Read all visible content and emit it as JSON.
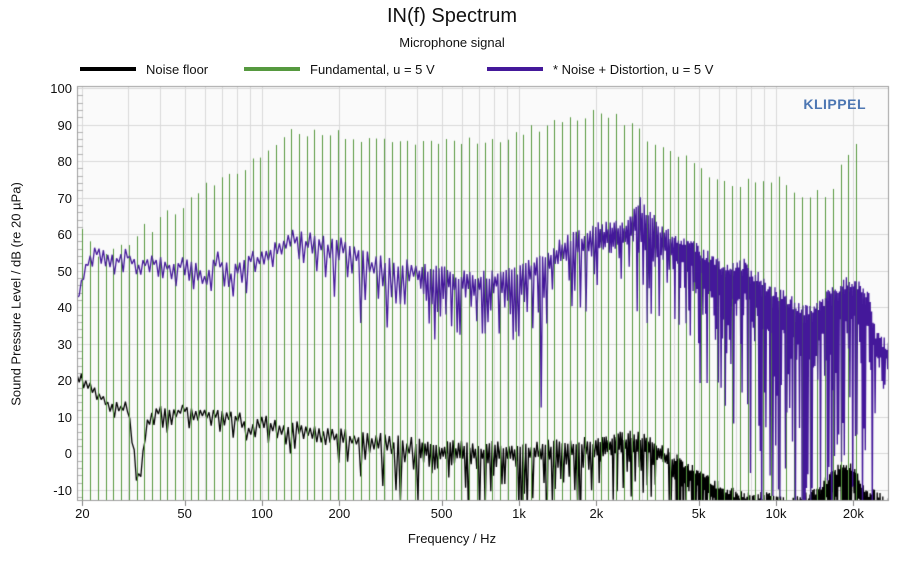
{
  "header": {
    "title": "IN(f) Spectrum",
    "subtitle": "Microphone signal"
  },
  "watermark": {
    "text": "KLIPPEL",
    "color": "#4d77b3"
  },
  "legend": [
    {
      "label": "Noise floor",
      "color": "#000000"
    },
    {
      "label": "Fundamental, u = 5 V",
      "color": "#56993f"
    },
    {
      "label": "* Noise + Distortion, u = 5 V",
      "color": "#44189a"
    }
  ],
  "chart_data": {
    "type": "line",
    "title": "IN(f) Spectrum",
    "subtitle": "Microphone signal",
    "xlabel": "Frequency / Hz",
    "ylabel": "Sound Pressure Level / dB (re 20 µPa)",
    "grid": true,
    "legend_position": "top",
    "plot_background": "#fafafa",
    "grid_color": "#d9d9d9",
    "border_color": "#9e9e9e",
    "x_axis": {
      "scale": "log",
      "min_hz": 19,
      "max_hz": 27500,
      "ticks": [
        {
          "value": 20,
          "label": "20"
        },
        {
          "value": 50,
          "label": "50"
        },
        {
          "value": 100,
          "label": "100"
        },
        {
          "value": 200,
          "label": "200"
        },
        {
          "value": 500,
          "label": "500"
        },
        {
          "value": 1000,
          "label": "1k"
        },
        {
          "value": 2000,
          "label": "2k"
        },
        {
          "value": 5000,
          "label": "5k"
        },
        {
          "value": 10000,
          "label": "10k"
        },
        {
          "value": 20000,
          "label": "20k"
        }
      ]
    },
    "y_axis": {
      "min_db": -13,
      "max_db": 100.5,
      "tick_start": -10,
      "tick_end": 100,
      "tick_step": 10,
      "minor_tick_step": 2
    },
    "series": [
      {
        "name": "Noise floor",
        "type": "noisy-line",
        "color": "#000000",
        "envelope_db": [
          [
            20,
            20.5
          ],
          [
            23,
            16
          ],
          [
            26,
            12.5
          ],
          [
            30,
            12
          ],
          [
            33,
            -8
          ],
          [
            36,
            9
          ],
          [
            40,
            11.5
          ],
          [
            45,
            10.5
          ],
          [
            50,
            12
          ],
          [
            55,
            10
          ],
          [
            60,
            11
          ],
          [
            70,
            10
          ],
          [
            80,
            9.5
          ],
          [
            90,
            6
          ],
          [
            100,
            8.5
          ],
          [
            120,
            7
          ],
          [
            140,
            6
          ],
          [
            170,
            5
          ],
          [
            200,
            4.5
          ],
          [
            250,
            3.5
          ],
          [
            300,
            2.5
          ],
          [
            400,
            1.5
          ],
          [
            500,
            1
          ],
          [
            650,
            0.5
          ],
          [
            800,
            0.5
          ],
          [
            1000,
            0.5
          ],
          [
            1300,
            1
          ],
          [
            1600,
            1.5
          ],
          [
            2000,
            2
          ],
          [
            2400,
            3
          ],
          [
            2800,
            3.5
          ],
          [
            3200,
            2
          ],
          [
            3600,
            0
          ],
          [
            4000,
            -2.5
          ],
          [
            4500,
            -5
          ],
          [
            5000,
            -7
          ],
          [
            5500,
            -9
          ],
          [
            6000,
            -11
          ],
          [
            7000,
            -13
          ],
          [
            8000,
            -14
          ],
          [
            10000,
            -14
          ],
          [
            12000,
            -15
          ],
          [
            14000,
            -13
          ],
          [
            16000,
            -9
          ],
          [
            18000,
            -6
          ],
          [
            20000,
            -6
          ],
          [
            22000,
            -12
          ],
          [
            27500,
            -16
          ]
        ],
        "upper_db": [
          [
            20,
            2
          ],
          [
            100,
            2.5
          ],
          [
            300,
            3
          ],
          [
            1000,
            3
          ],
          [
            3000,
            3
          ],
          [
            27500,
            4
          ]
        ],
        "lower_db": [
          [
            20,
            3
          ],
          [
            60,
            5
          ],
          [
            120,
            6
          ],
          [
            200,
            10
          ],
          [
            300,
            15
          ],
          [
            600,
            18
          ],
          [
            1500,
            17
          ],
          [
            3000,
            16
          ],
          [
            6000,
            20
          ],
          [
            27500,
            25
          ]
        ]
      },
      {
        "name": "Fundamental, u = 5 V",
        "type": "comb",
        "color": "#56993f",
        "f_start_hz": 20,
        "tones_per_octave": 10,
        "num_tones": 101,
        "level_envelope_db": [
          [
            20,
            61
          ],
          [
            22,
            56
          ],
          [
            24,
            53
          ],
          [
            26,
            57
          ],
          [
            28,
            57
          ],
          [
            30,
            56
          ],
          [
            32,
            59
          ],
          [
            35,
            62
          ],
          [
            38,
            61
          ],
          [
            40,
            64
          ],
          [
            43,
            66
          ],
          [
            46,
            65
          ],
          [
            50,
            69
          ],
          [
            55,
            71
          ],
          [
            60,
            73
          ],
          [
            66,
            74
          ],
          [
            72,
            75.5
          ],
          [
            78,
            76.5
          ],
          [
            85,
            78.5
          ],
          [
            92,
            80
          ],
          [
            100,
            82
          ],
          [
            108,
            84
          ],
          [
            116,
            86
          ],
          [
            125,
            87
          ],
          [
            134,
            88
          ],
          [
            144,
            88
          ],
          [
            155,
            87.5
          ],
          [
            166,
            88
          ],
          [
            178,
            87
          ],
          [
            191,
            87.5
          ],
          [
            205,
            87
          ],
          [
            220,
            86
          ],
          [
            236,
            86.5
          ],
          [
            253,
            85
          ],
          [
            271,
            86
          ],
          [
            291,
            85
          ],
          [
            312,
            85.5
          ],
          [
            335,
            84.5
          ],
          [
            359,
            85
          ],
          [
            385,
            85.5
          ],
          [
            413,
            85
          ],
          [
            443,
            85.5
          ],
          [
            475,
            85
          ],
          [
            509,
            85.5
          ],
          [
            546,
            85
          ],
          [
            586,
            86
          ],
          [
            628,
            85.5
          ],
          [
            674,
            85
          ],
          [
            722,
            85.5
          ],
          [
            775,
            85
          ],
          [
            831,
            85.5
          ],
          [
            891,
            86.5
          ],
          [
            955,
            87
          ],
          [
            1024,
            87.5
          ],
          [
            1098,
            88.5
          ],
          [
            1178,
            89
          ],
          [
            1263,
            90
          ],
          [
            1354,
            90.5
          ],
          [
            1452,
            91
          ],
          [
            1557,
            91.5
          ],
          [
            1670,
            92
          ],
          [
            1790,
            92.5
          ],
          [
            1920,
            93.5
          ],
          [
            2059,
            93
          ],
          [
            2208,
            92.5
          ],
          [
            2367,
            92
          ],
          [
            2539,
            91
          ],
          [
            2722,
            90
          ],
          [
            2919,
            88
          ],
          [
            3130,
            86
          ],
          [
            3357,
            84.5
          ],
          [
            3599,
            83
          ],
          [
            3859,
            82
          ],
          [
            4139,
            81
          ],
          [
            4438,
            80.5
          ],
          [
            4759,
            79
          ],
          [
            5103,
            78
          ],
          [
            5472,
            76.5
          ],
          [
            5868,
            75.5
          ],
          [
            6292,
            74.5
          ],
          [
            6747,
            74
          ],
          [
            7235,
            73.5
          ],
          [
            7758,
            74.5
          ],
          [
            8319,
            75
          ],
          [
            8921,
            75.5
          ],
          [
            9566,
            74.5
          ],
          [
            10258,
            75
          ],
          [
            11000,
            73
          ],
          [
            11795,
            71.5
          ],
          [
            12648,
            71
          ],
          [
            13563,
            70.5
          ],
          [
            14544,
            71
          ],
          [
            15596,
            70.5
          ],
          [
            16724,
            72
          ],
          [
            17933,
            79
          ],
          [
            19230,
            83
          ],
          [
            20480,
            84
          ]
        ]
      },
      {
        "name": "* Noise + Distortion, u = 5 V",
        "type": "noisy-line",
        "color": "#44189a",
        "envelope_db": [
          [
            19,
            41
          ],
          [
            21,
            53
          ],
          [
            23,
            55
          ],
          [
            25,
            53.5
          ],
          [
            27,
            53
          ],
          [
            30,
            54
          ],
          [
            33,
            51
          ],
          [
            36,
            52.5
          ],
          [
            40,
            52
          ],
          [
            45,
            50.5
          ],
          [
            50,
            52.5
          ],
          [
            55,
            50
          ],
          [
            60,
            46
          ],
          [
            64,
            51
          ],
          [
            68,
            53
          ],
          [
            72,
            50
          ],
          [
            76,
            48
          ],
          [
            80,
            51
          ],
          [
            85,
            52
          ],
          [
            90,
            53.5
          ],
          [
            95,
            52
          ],
          [
            100,
            53
          ],
          [
            110,
            55
          ],
          [
            120,
            56.5
          ],
          [
            130,
            59
          ],
          [
            140,
            58
          ],
          [
            150,
            57
          ],
          [
            160,
            58.5
          ],
          [
            170,
            57
          ],
          [
            180,
            56.5
          ],
          [
            190,
            55.5
          ],
          [
            200,
            56.5
          ],
          [
            215,
            55
          ],
          [
            230,
            54
          ],
          [
            250,
            52.5
          ],
          [
            270,
            51.5
          ],
          [
            290,
            52
          ],
          [
            310,
            50.5
          ],
          [
            340,
            50
          ],
          [
            370,
            50.5
          ],
          [
            400,
            49.5
          ],
          [
            430,
            49
          ],
          [
            470,
            48.5
          ],
          [
            510,
            48
          ],
          [
            550,
            47.5
          ],
          [
            600,
            47
          ],
          [
            650,
            46.5
          ],
          [
            700,
            46.5
          ],
          [
            760,
            47
          ],
          [
            820,
            47.5
          ],
          [
            900,
            48
          ],
          [
            1000,
            48.5
          ],
          [
            1100,
            50
          ],
          [
            1200,
            51.5
          ],
          [
            1350,
            53.5
          ],
          [
            1500,
            55.5
          ],
          [
            1650,
            57
          ],
          [
            1800,
            58.5
          ],
          [
            2000,
            59.5
          ],
          [
            2200,
            60
          ],
          [
            2400,
            59.5
          ],
          [
            2600,
            60.5
          ],
          [
            2800,
            63
          ],
          [
            2950,
            65.5
          ],
          [
            3100,
            63.5
          ],
          [
            3300,
            61.5
          ],
          [
            3500,
            60
          ],
          [
            3700,
            58.5
          ],
          [
            4000,
            57
          ],
          [
            4300,
            55.5
          ],
          [
            4700,
            54.5
          ],
          [
            5100,
            53
          ],
          [
            5500,
            51.5
          ],
          [
            6000,
            50
          ],
          [
            6500,
            48.5
          ],
          [
            7000,
            49
          ],
          [
            7500,
            49.5
          ],
          [
            8000,
            47
          ],
          [
            8500,
            45.5
          ],
          [
            9000,
            44
          ],
          [
            9600,
            42.5
          ],
          [
            10300,
            41
          ],
          [
            11000,
            39.5
          ],
          [
            12000,
            38
          ],
          [
            13000,
            37
          ],
          [
            14000,
            37.5
          ],
          [
            15000,
            38.5
          ],
          [
            16000,
            40
          ],
          [
            17000,
            41.5
          ],
          [
            18000,
            43
          ],
          [
            19000,
            44
          ],
          [
            20000,
            44.5
          ],
          [
            21000,
            43.5
          ],
          [
            22000,
            42
          ],
          [
            23000,
            39.5
          ],
          [
            23700,
            36
          ],
          [
            24200,
            31
          ],
          [
            25000,
            29
          ],
          [
            26000,
            28
          ],
          [
            27500,
            27
          ]
        ],
        "upper_db": [
          [
            19,
            2
          ],
          [
            100,
            3
          ],
          [
            1000,
            3.5
          ],
          [
            2500,
            4.5
          ],
          [
            3000,
            5
          ],
          [
            3500,
            4
          ],
          [
            5000,
            4
          ],
          [
            18000,
            5
          ],
          [
            27500,
            4
          ]
        ],
        "lower_db": [
          [
            19,
            4
          ],
          [
            60,
            6
          ],
          [
            100,
            6
          ],
          [
            200,
            9
          ],
          [
            300,
            13
          ],
          [
            600,
            16
          ],
          [
            1000,
            19
          ],
          [
            2000,
            23
          ],
          [
            3000,
            26
          ],
          [
            4500,
            30
          ],
          [
            6000,
            40
          ],
          [
            8000,
            55
          ],
          [
            12000,
            60
          ],
          [
            18000,
            55
          ],
          [
            23000,
            50
          ],
          [
            24500,
            20
          ],
          [
            27500,
            12
          ]
        ]
      }
    ]
  }
}
